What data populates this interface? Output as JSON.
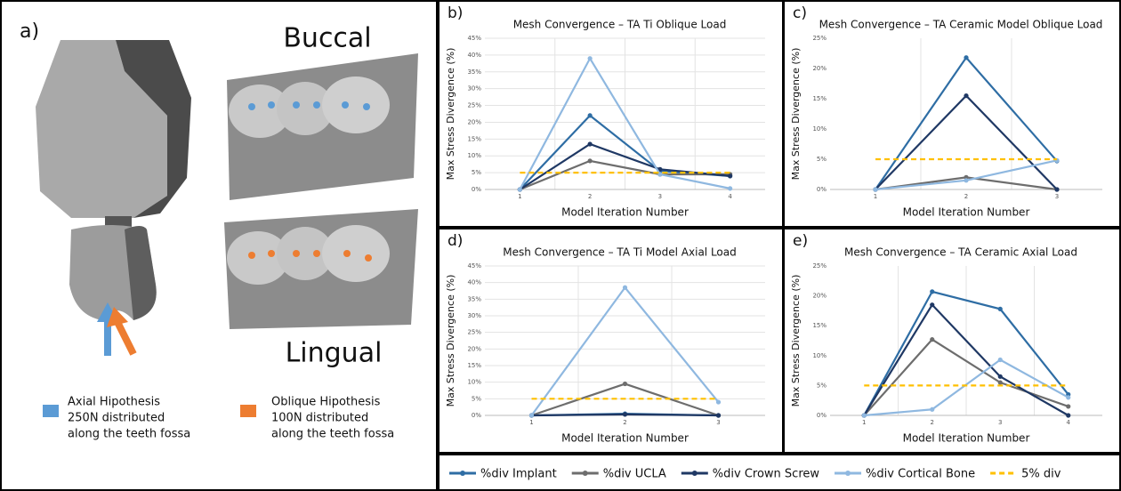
{
  "panel_a": {
    "label": "a)",
    "buccal": "Buccal",
    "lingual": "Lingual",
    "axial": [
      "Axial Hipothesis",
      "250N distributed",
      "along the teeth fossa"
    ],
    "oblique": [
      "Oblique Hipothesis",
      "100N distributed",
      "along the teeth fossa"
    ]
  },
  "chart_data": [
    {
      "type": "line",
      "label": "b)",
      "title": "Mesh Convergence – TA Ti Oblique Load",
      "x_label": "Model Iteration Number",
      "y_label": "Max Stress Divergence (%)",
      "categories": [
        "1",
        "2",
        "3",
        "4"
      ],
      "ylim": [
        0,
        45
      ],
      "yticks": [
        {
          "value": 0,
          "label": "0%"
        },
        {
          "value": 5,
          "label": "5%"
        },
        {
          "value": 10,
          "label": "10%"
        },
        {
          "value": 15,
          "label": "15%"
        },
        {
          "value": 20,
          "label": "20%"
        },
        {
          "value": 25,
          "label": "25%"
        },
        {
          "value": 30,
          "label": "30%"
        },
        {
          "value": 35,
          "label": "35%"
        },
        {
          "value": 40,
          "label": "40%"
        },
        {
          "value": 45,
          "label": "45%"
        }
      ],
      "grid": true,
      "series": [
        {
          "name": "%div Implant",
          "color": "#2e6da4",
          "values": [
            0,
            22,
            5.5,
            4
          ]
        },
        {
          "name": "%div UCLA",
          "color": "#6d6d6d",
          "values": [
            0,
            8.5,
            4.5,
            4.5
          ]
        },
        {
          "name": "%div Crown Screw",
          "color": "#1f3864",
          "values": [
            0,
            13.5,
            6,
            4
          ]
        },
        {
          "name": "%div Cortical Bone",
          "color": "#8fb8e0",
          "values": [
            0,
            39,
            4.5,
            0.3
          ]
        },
        {
          "name": "5% div",
          "color": "#ffc000",
          "dashed": true,
          "values": [
            5,
            5,
            5,
            5
          ]
        }
      ]
    },
    {
      "type": "line",
      "label": "c)",
      "title": "Mesh Convergence – TA Ceramic Model Oblique Load",
      "x_label": "Model Iteration Number",
      "y_label": "Max Stress Divergence (%)",
      "categories": [
        "1",
        "2",
        "3"
      ],
      "ylim": [
        0,
        25
      ],
      "yticks": [
        {
          "value": 0,
          "label": "0%"
        },
        {
          "value": 5,
          "label": "5%"
        },
        {
          "value": 10,
          "label": "10%"
        },
        {
          "value": 15,
          "label": "15%"
        },
        {
          "value": 20,
          "label": "20%"
        },
        {
          "value": 25,
          "label": "25%"
        }
      ],
      "grid": false,
      "series": [
        {
          "name": "%div Implant",
          "color": "#2e6da4",
          "values": [
            0,
            21.8,
            4.7
          ]
        },
        {
          "name": "%div UCLA",
          "color": "#6d6d6d",
          "values": [
            0,
            2,
            0
          ]
        },
        {
          "name": "%div Crown Screw",
          "color": "#1f3864",
          "values": [
            0,
            15.5,
            0
          ]
        },
        {
          "name": "%div Cortical Bone",
          "color": "#8fb8e0",
          "values": [
            0,
            1.5,
            4.8
          ]
        },
        {
          "name": "5% div",
          "color": "#ffc000",
          "dashed": true,
          "values": [
            5,
            5,
            5
          ]
        }
      ]
    },
    {
      "type": "line",
      "label": "d)",
      "title": "Mesh Convergence – TA Ti Model Axial Load",
      "x_label": "Model Iteration Number",
      "y_label": "Max Stress Divergence (%)",
      "categories": [
        "1",
        "2",
        "3"
      ],
      "ylim": [
        0,
        45
      ],
      "yticks": [
        {
          "value": 0,
          "label": "0%"
        },
        {
          "value": 5,
          "label": "5%"
        },
        {
          "value": 10,
          "label": "10%"
        },
        {
          "value": 15,
          "label": "15%"
        },
        {
          "value": 20,
          "label": "20%"
        },
        {
          "value": 25,
          "label": "25%"
        },
        {
          "value": 30,
          "label": "30%"
        },
        {
          "value": 35,
          "label": "35%"
        },
        {
          "value": 40,
          "label": "40%"
        },
        {
          "value": 45,
          "label": "45%"
        }
      ],
      "grid": true,
      "series": [
        {
          "name": "%div Implant",
          "color": "#2e6da4",
          "values": [
            0,
            0.5,
            0
          ]
        },
        {
          "name": "%div UCLA",
          "color": "#6d6d6d",
          "values": [
            0,
            9.5,
            0
          ]
        },
        {
          "name": "%div Crown Screw",
          "color": "#1f3864",
          "values": [
            0,
            0.3,
            0
          ]
        },
        {
          "name": "%div Cortical Bone",
          "color": "#8fb8e0",
          "values": [
            0,
            38.5,
            4
          ]
        },
        {
          "name": "5% div",
          "color": "#ffc000",
          "dashed": true,
          "values": [
            5,
            5,
            5
          ]
        }
      ]
    },
    {
      "type": "line",
      "label": "e)",
      "title": "Mesh Convergence – TA Ceramic Axial Load",
      "x_label": "Model Iteration Number",
      "y_label": "Max Stress Divergence (%)",
      "categories": [
        "1",
        "2",
        "3",
        "4"
      ],
      "ylim": [
        0,
        25
      ],
      "yticks": [
        {
          "value": 0,
          "label": "0%"
        },
        {
          "value": 5,
          "label": "5%"
        },
        {
          "value": 10,
          "label": "10%"
        },
        {
          "value": 15,
          "label": "15%"
        },
        {
          "value": 20,
          "label": "20%"
        },
        {
          "value": 25,
          "label": "25%"
        }
      ],
      "grid": false,
      "series": [
        {
          "name": "%div Implant",
          "color": "#2e6da4",
          "values": [
            0,
            20.7,
            17.8,
            3.5
          ]
        },
        {
          "name": "%div UCLA",
          "color": "#6d6d6d",
          "values": [
            0,
            12.7,
            5.5,
            1.5
          ]
        },
        {
          "name": "%div Crown Screw",
          "color": "#1f3864",
          "values": [
            0,
            18.5,
            6.5,
            0
          ]
        },
        {
          "name": "%div Cortical Bone",
          "color": "#8fb8e0",
          "values": [
            0,
            1,
            9.3,
            3
          ]
        },
        {
          "name": "5% div",
          "color": "#ffc000",
          "dashed": true,
          "values": [
            5,
            5,
            5,
            5
          ]
        }
      ]
    }
  ]
}
